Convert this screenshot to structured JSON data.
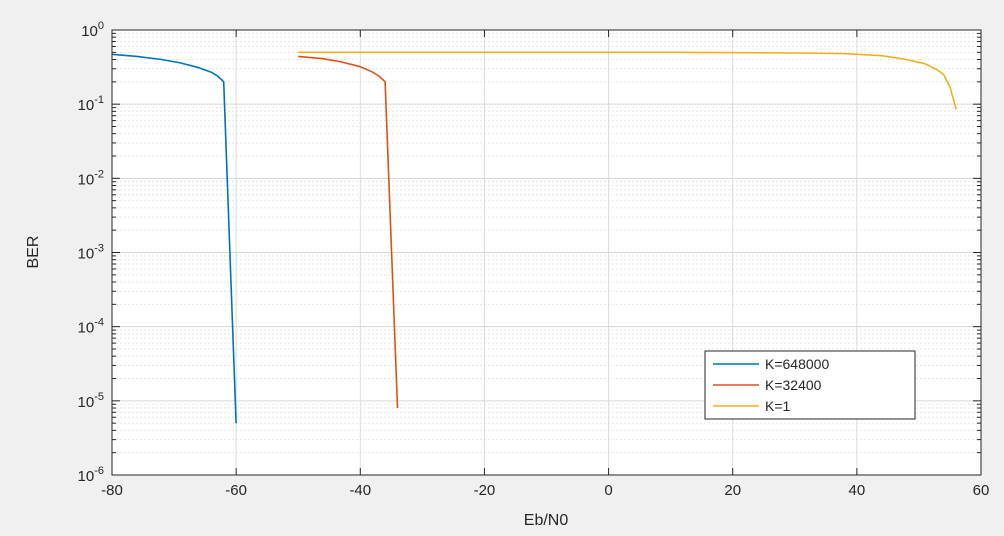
{
  "chart_data": {
    "type": "line",
    "title": "",
    "xlabel": "Eb/N0",
    "ylabel": "BER",
    "xlim": [
      -80,
      60
    ],
    "ylim": [
      1e-06,
      1
    ],
    "yscale": "log",
    "grid": true,
    "minor_grid": true,
    "legend_position": "bottom-right",
    "x_ticks": [
      -80,
      -60,
      -40,
      -20,
      0,
      20,
      40,
      60
    ],
    "x_tick_labels": [
      "-80",
      "-60",
      "-40",
      "-20",
      "0",
      "20",
      "40",
      "60"
    ],
    "y_ticks": [
      {
        "value": 1,
        "base": "10",
        "exp": "0"
      },
      {
        "value": 0.1,
        "base": "10",
        "exp": "-1"
      },
      {
        "value": 0.01,
        "base": "10",
        "exp": "-2"
      },
      {
        "value": 0.001,
        "base": "10",
        "exp": "-3"
      },
      {
        "value": 0.0001,
        "base": "10",
        "exp": "-4"
      },
      {
        "value": 1e-05,
        "base": "10",
        "exp": "-5"
      },
      {
        "value": 1e-06,
        "base": "10",
        "exp": "-6"
      }
    ],
    "series": [
      {
        "name": "K=648000",
        "color": "#0072BD",
        "x": [
          -80,
          -76,
          -72,
          -69,
          -66,
          -64,
          -63,
          -62.5,
          -62,
          -60
        ],
        "y": [
          0.47,
          0.44,
          0.4,
          0.36,
          0.31,
          0.27,
          0.24,
          0.22,
          0.2,
          5e-06
        ]
      },
      {
        "name": "K=32400",
        "color": "#D95319",
        "x": [
          -50,
          -46,
          -43,
          -40,
          -38,
          -37,
          -36,
          -34
        ],
        "y": [
          0.44,
          0.41,
          0.37,
          0.32,
          0.27,
          0.24,
          0.2,
          8e-06
        ]
      },
      {
        "name": "K=1",
        "color": "#EDB120",
        "x": [
          -50,
          -30,
          -10,
          10,
          30,
          38,
          44,
          48,
          51,
          53,
          54,
          55,
          56
        ],
        "y": [
          0.5,
          0.5,
          0.5,
          0.5,
          0.49,
          0.48,
          0.45,
          0.4,
          0.35,
          0.29,
          0.25,
          0.17,
          0.085
        ]
      }
    ]
  }
}
